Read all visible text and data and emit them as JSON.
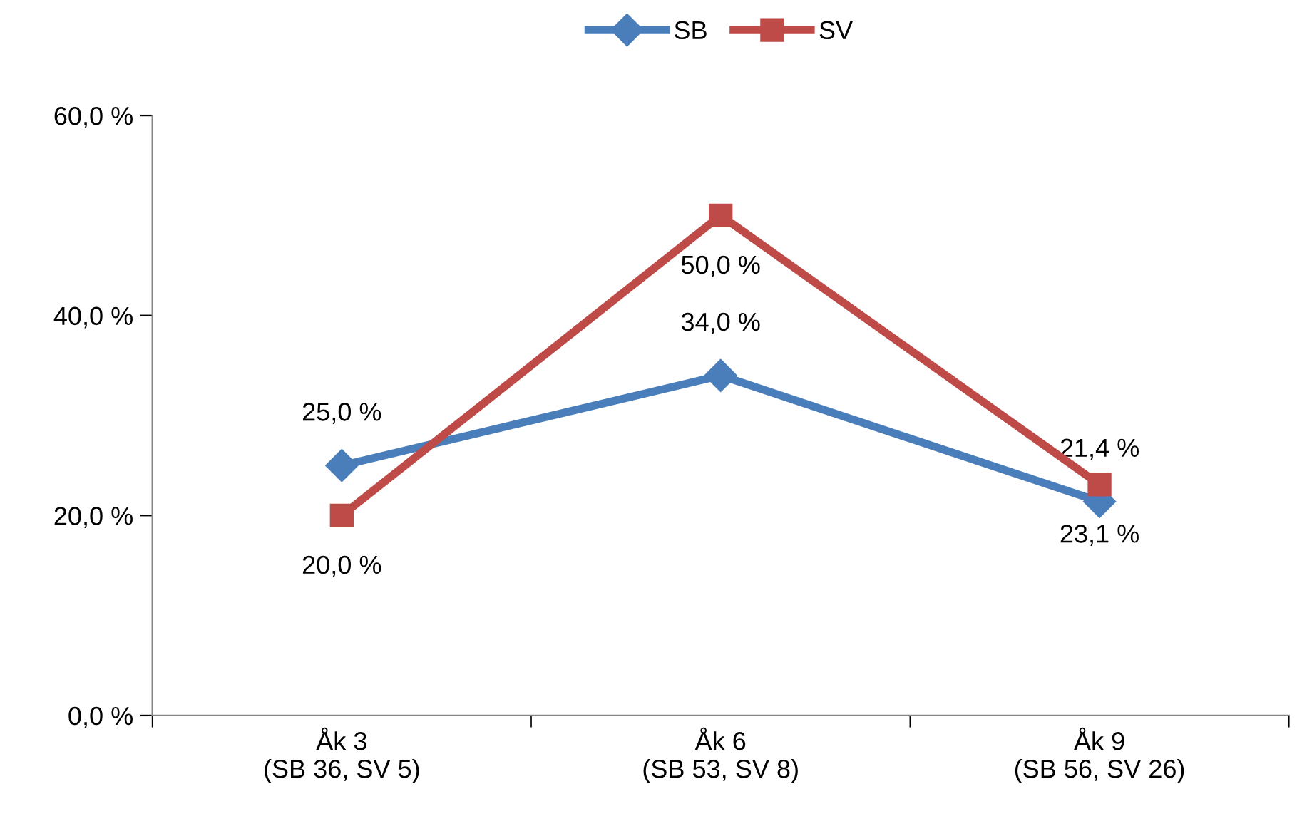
{
  "chart_data": {
    "type": "line",
    "categories": [
      "Åk 3\n(SB 36, SV 5)",
      "Åk 6\n(SB 53, SV 8)",
      "Åk 9\n(SB 56, SV 26)"
    ],
    "series": [
      {
        "name": "SB",
        "color": "#4a7ebb",
        "marker": "diamond",
        "values": [
          25.0,
          34.0,
          21.4
        ],
        "value_labels": [
          "25,0 %",
          "34,0 %",
          "21,4 %"
        ]
      },
      {
        "name": "SV",
        "color": "#be4b48",
        "marker": "square",
        "values": [
          20.0,
          50.0,
          23.1
        ],
        "value_labels": [
          "20,0 %",
          "50,0 %",
          "23,1 %"
        ]
      }
    ],
    "ylim": [
      0,
      60
    ],
    "yticks": [
      {
        "value": 0,
        "label": "0,0 %"
      },
      {
        "value": 20,
        "label": "20,0 %"
      },
      {
        "value": 40,
        "label": "40,0 %"
      },
      {
        "value": 60,
        "label": "60,0 %"
      }
    ],
    "grid": false,
    "legend": "top",
    "line_style": "solid"
  }
}
